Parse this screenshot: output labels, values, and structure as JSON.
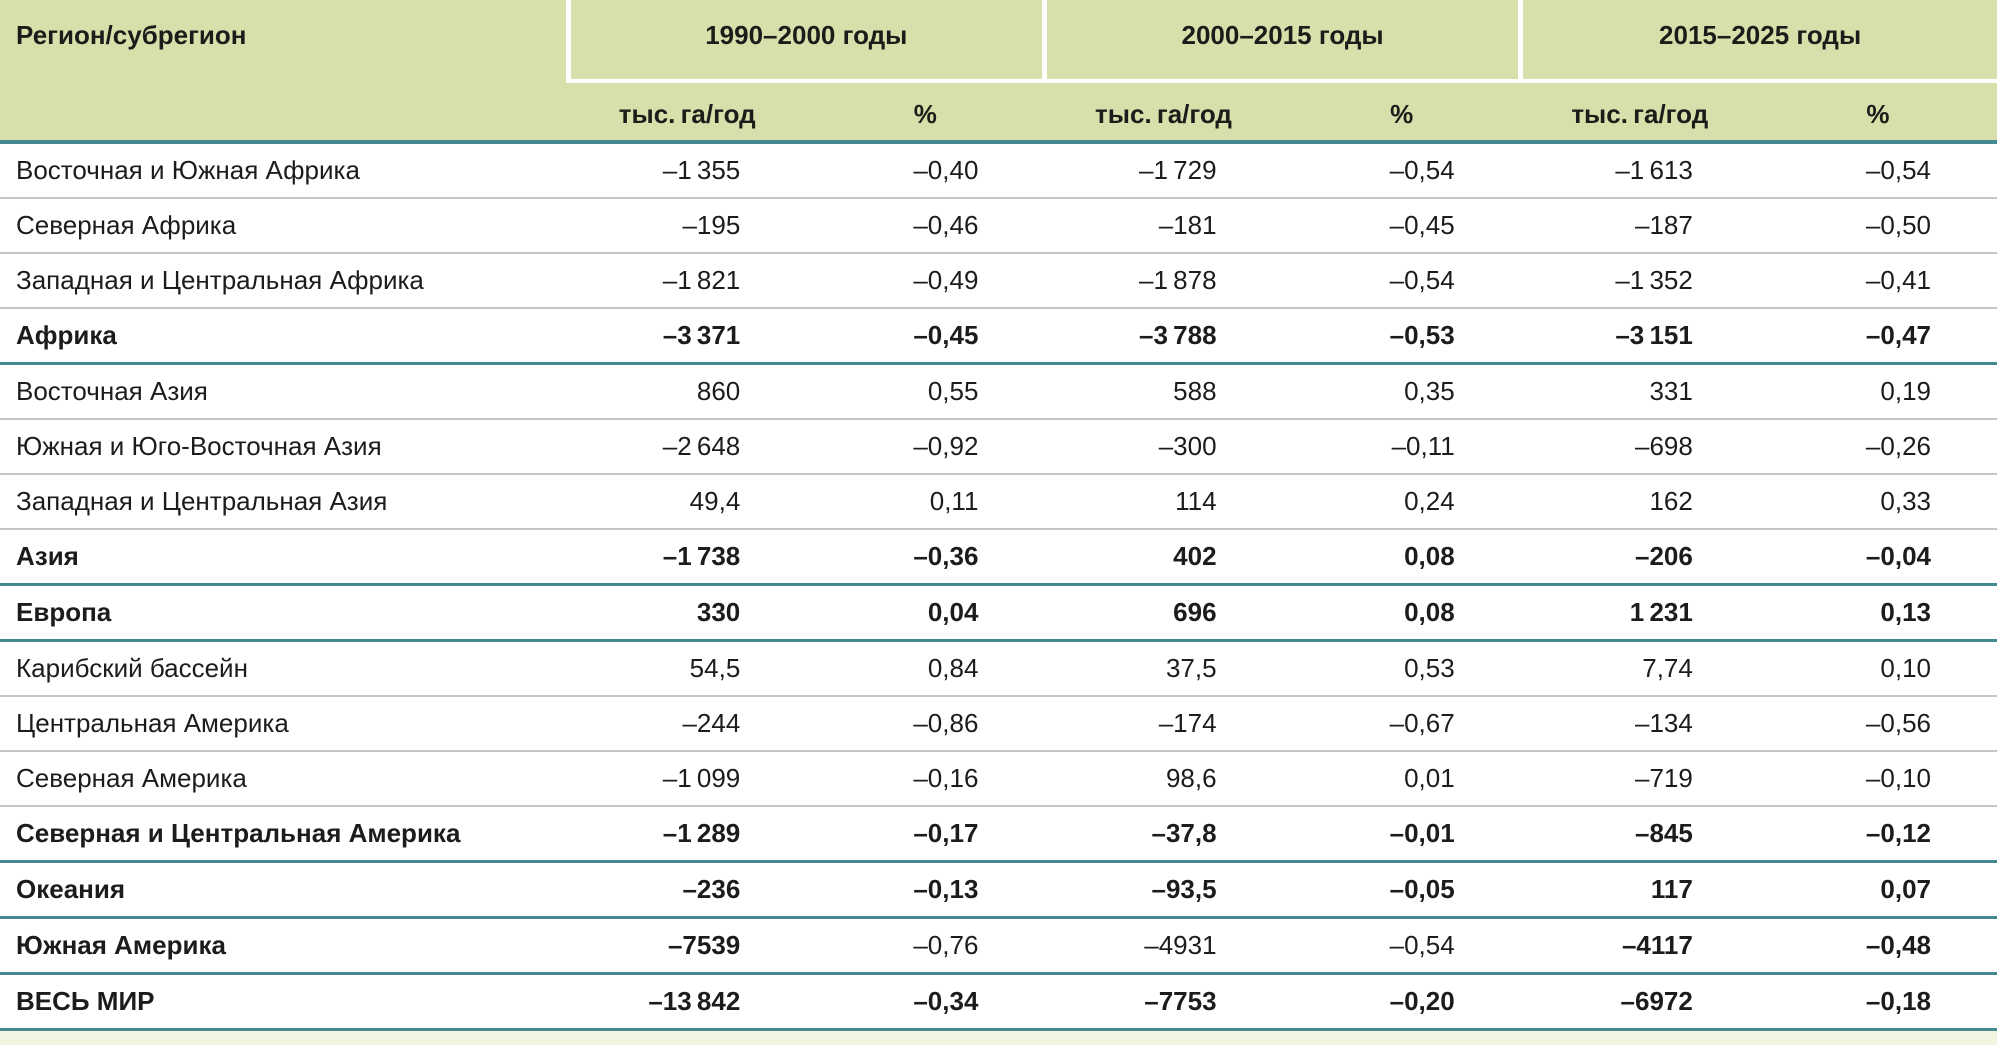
{
  "colors": {
    "header_bg": "#d8dfaa",
    "teal_rule": "#44898f",
    "gray_rule": "#c6c6c6",
    "footer_strip": "#f1f5e1",
    "text": "#1c1c1a"
  },
  "table": {
    "region_header": "Регион/субрегион",
    "groups": [
      {
        "title": "1990–2000 годы"
      },
      {
        "title": "2000–2015 годы"
      },
      {
        "title": "2015–2025 годы"
      }
    ],
    "sub_headers": [
      "тыс. га/год",
      "%",
      "тыс. га/год",
      "%",
      "тыс. га/год",
      "%"
    ],
    "rows": [
      {
        "name": "Восточная и Южная Африка",
        "values": [
          "–1 355",
          "–0,40",
          "–1 729",
          "–0,54",
          "–1 613",
          "–0,54"
        ],
        "bold": [
          false,
          false,
          false,
          false,
          false,
          false,
          false
        ],
        "divider": "gray"
      },
      {
        "name": "Северная Африка",
        "values": [
          "–195",
          "–0,46",
          "–181",
          "–0,45",
          "–187",
          "–0,50"
        ],
        "bold": [
          false,
          false,
          false,
          false,
          false,
          false,
          false
        ],
        "divider": "gray"
      },
      {
        "name": "Западная и Центральная Африка",
        "values": [
          "–1 821",
          "–0,49",
          "–1 878",
          "–0,54",
          "–1 352",
          "–0,41"
        ],
        "bold": [
          false,
          false,
          false,
          false,
          false,
          false,
          false
        ],
        "divider": "gray"
      },
      {
        "name": "Африка",
        "values": [
          "–3 371",
          "–0,45",
          "–3 788",
          "–0,53",
          "–3 151",
          "–0,47"
        ],
        "bold": [
          true,
          true,
          true,
          true,
          true,
          true,
          true
        ],
        "divider": "teal"
      },
      {
        "name": "Восточная Азия",
        "values": [
          "860",
          "0,55",
          "588",
          "0,35",
          "331",
          "0,19"
        ],
        "bold": [
          false,
          false,
          false,
          false,
          false,
          false,
          false
        ],
        "divider": "gray"
      },
      {
        "name": "Южная и Юго-Восточная Азия",
        "values": [
          "–2 648",
          "–0,92",
          "–300",
          "–0,11",
          "–698",
          "–0,26"
        ],
        "bold": [
          false,
          false,
          false,
          false,
          false,
          false,
          false
        ],
        "divider": "gray"
      },
      {
        "name": "Западная и Центральная Азия",
        "values": [
          "49,4",
          "0,11",
          "114",
          "0,24",
          "162",
          "0,33"
        ],
        "bold": [
          false,
          false,
          false,
          false,
          false,
          false,
          false
        ],
        "divider": "gray"
      },
      {
        "name": "Азия",
        "values": [
          "–1 738",
          "–0,36",
          "402",
          "0,08",
          "–206",
          "–0,04"
        ],
        "bold": [
          true,
          true,
          true,
          true,
          true,
          true,
          true
        ],
        "divider": "teal"
      },
      {
        "name": "Европа",
        "values": [
          "330",
          "0,04",
          "696",
          "0,08",
          "1 231",
          "0,13"
        ],
        "bold": [
          true,
          true,
          true,
          true,
          true,
          true,
          true
        ],
        "divider": "teal"
      },
      {
        "name": "Карибский бассейн",
        "values": [
          "54,5",
          "0,84",
          "37,5",
          "0,53",
          "7,74",
          "0,10"
        ],
        "bold": [
          false,
          false,
          false,
          false,
          false,
          false,
          false
        ],
        "divider": "gray"
      },
      {
        "name": "Центральная Америка",
        "values": [
          "–244",
          "–0,86",
          "–174",
          "–0,67",
          "–134",
          "–0,56"
        ],
        "bold": [
          false,
          false,
          false,
          false,
          false,
          false,
          false
        ],
        "divider": "gray"
      },
      {
        "name": "Северная Америка",
        "values": [
          "–1 099",
          "–0,16",
          "98,6",
          "0,01",
          "–719",
          "–0,10"
        ],
        "bold": [
          false,
          false,
          false,
          false,
          false,
          false,
          false
        ],
        "divider": "gray"
      },
      {
        "name": "Северная и Центральная Америка",
        "values": [
          "–1 289",
          "–0,17",
          "–37,8",
          "–0,01",
          "–845",
          "–0,12"
        ],
        "bold": [
          true,
          true,
          true,
          true,
          true,
          true,
          true
        ],
        "divider": "teal"
      },
      {
        "name": "Океания",
        "values": [
          "–236",
          "–0,13",
          "–93,5",
          "–0,05",
          "117",
          "0,07"
        ],
        "bold": [
          true,
          true,
          true,
          true,
          true,
          true,
          true
        ],
        "divider": "teal"
      },
      {
        "name": "Южная Америка",
        "values": [
          "–7539",
          "–0,76",
          "–4931",
          "–0,54",
          "–4117",
          "–0,48"
        ],
        "bold": [
          true,
          true,
          false,
          false,
          false,
          true,
          true
        ],
        "divider": "teal"
      },
      {
        "name": "ВЕСЬ МИР",
        "values": [
          "–13 842",
          "–0,34",
          "–7753",
          "–0,20",
          "–6972",
          "–0,18"
        ],
        "bold": [
          true,
          true,
          true,
          true,
          true,
          true,
          true
        ],
        "divider": "teal"
      }
    ]
  }
}
